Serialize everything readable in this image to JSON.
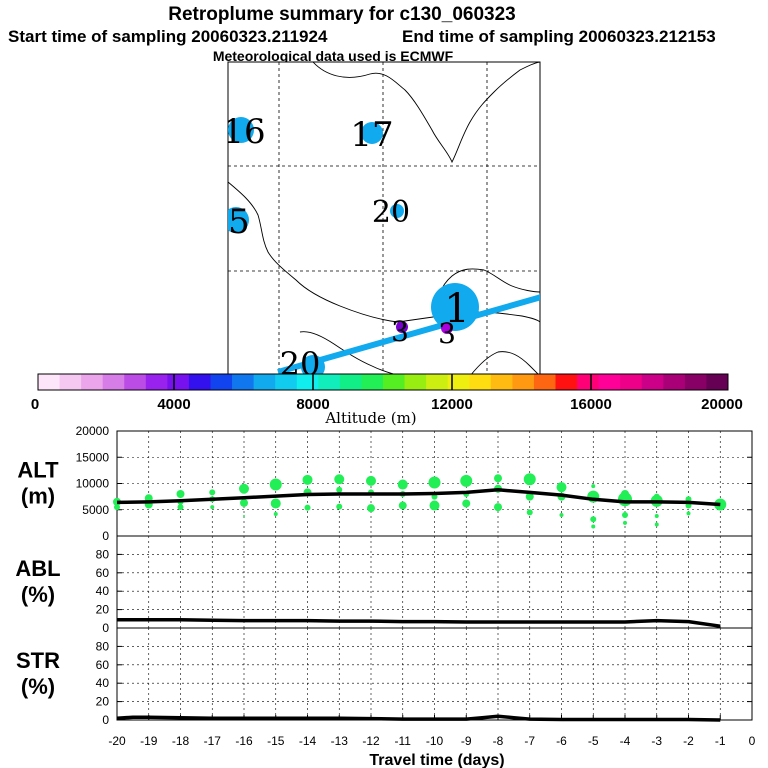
{
  "header": {
    "title": "Retroplume summary for c130_060323",
    "start": "Start time of sampling 20060323.211924",
    "end": "End time of sampling 20060323.212153",
    "met": "Meteorological data used is ECMWF"
  },
  "map": {
    "markers": [
      {
        "label": "16",
        "color": "#11aaee",
        "size": 13
      },
      {
        "label": "17",
        "color": "#11aaee",
        "size": 11
      },
      {
        "label": "5",
        "color": "#11aaee",
        "size": 13
      },
      {
        "label": "20",
        "color": "#11aaee",
        "size": 7
      },
      {
        "label": "1",
        "color": "#11aaee",
        "size": 24
      },
      {
        "label": "3",
        "color": "#7700cc",
        "size": 6
      },
      {
        "label": "3",
        "color": "#aa00dd",
        "size": 6
      },
      {
        "label": "20",
        "color": "#11aaee",
        "size": 12
      }
    ]
  },
  "colorbar": {
    "label": "Altitude (m)",
    "ticks": [
      "0",
      "4000",
      "8000",
      "12000",
      "16000",
      "20000"
    ],
    "colors": [
      "#fde6fa",
      "#f5c8f2",
      "#eba5eb",
      "#d77de8",
      "#bb4ce6",
      "#9922ee",
      "#7711ee",
      "#3311ee",
      "#1144ee",
      "#1177ee",
      "#11aaee",
      "#11ccee",
      "#11eeee",
      "#11eebb",
      "#11ee88",
      "#22ee55",
      "#55ee22",
      "#99ee11",
      "#ccee11",
      "#eeee11",
      "#ffdd11",
      "#ffbb11",
      "#ff9911",
      "#ff6611",
      "#ff1111",
      "#ff0077",
      "#ff0099",
      "#ee0088",
      "#cc0088",
      "#aa0077",
      "#880066",
      "#660055"
    ]
  },
  "chart_data": {
    "type": "scatter",
    "x_ticks": [
      "-20",
      "-19",
      "-18",
      "-17",
      "-16",
      "-15",
      "-14",
      "-13",
      "-12",
      "-11",
      "-10",
      "-9",
      "-8",
      "-7",
      "-6",
      "-5",
      "-4",
      "-3",
      "-2",
      "-1",
      "0"
    ],
    "xlabel": "Travel time (days)",
    "panels": [
      {
        "name": "ALT",
        "label_top": "ALT",
        "label_bottom": "(m)",
        "ylim": [
          0,
          20000
        ],
        "yticks": [
          "0",
          "5000",
          "10000",
          "15000",
          "20000"
        ],
        "line": {
          "x": [
            -20,
            -19,
            -18,
            -17,
            -16,
            -15,
            -14,
            -13,
            -12,
            -11,
            -10,
            -9,
            -8,
            -7,
            -6,
            -5,
            -4,
            -3,
            -2,
            -1
          ],
          "y": [
            6400,
            6500,
            6700,
            7000,
            7300,
            7600,
            7900,
            8000,
            8000,
            8000,
            8100,
            8300,
            8800,
            8300,
            7800,
            7000,
            6500,
            6500,
            6400,
            6000
          ]
        },
        "points": [
          {
            "x": -20,
            "y": 6500,
            "r": 4
          },
          {
            "x": -20,
            "y": 5500,
            "r": 3
          },
          {
            "x": -19,
            "y": 7200,
            "r": 4
          },
          {
            "x": -19,
            "y": 6000,
            "r": 4
          },
          {
            "x": -18,
            "y": 8000,
            "r": 4
          },
          {
            "x": -18,
            "y": 6500,
            "r": 3
          },
          {
            "x": -18,
            "y": 5500,
            "r": 3
          },
          {
            "x": -17,
            "y": 8300,
            "r": 3
          },
          {
            "x": -17,
            "y": 7000,
            "r": 3
          },
          {
            "x": -17,
            "y": 5500,
            "r": 2
          },
          {
            "x": -16,
            "y": 9000,
            "r": 5
          },
          {
            "x": -16,
            "y": 6300,
            "r": 4
          },
          {
            "x": -16,
            "y": 3800,
            "r": 1
          },
          {
            "x": -15,
            "y": 9800,
            "r": 6
          },
          {
            "x": -15,
            "y": 6200,
            "r": 5
          },
          {
            "x": -15,
            "y": 4200,
            "r": 2
          },
          {
            "x": -14,
            "y": 10700,
            "r": 5
          },
          {
            "x": -14,
            "y": 8300,
            "r": 4
          },
          {
            "x": -14,
            "y": 5400,
            "r": 3
          },
          {
            "x": -13,
            "y": 10800,
            "r": 5
          },
          {
            "x": -13,
            "y": 8800,
            "r": 3
          },
          {
            "x": -13,
            "y": 5600,
            "r": 3
          },
          {
            "x": -12,
            "y": 10500,
            "r": 5
          },
          {
            "x": -12,
            "y": 8300,
            "r": 3
          },
          {
            "x": -12,
            "y": 5300,
            "r": 4
          },
          {
            "x": -11,
            "y": 9800,
            "r": 5
          },
          {
            "x": -11,
            "y": 8000,
            "r": 3
          },
          {
            "x": -11,
            "y": 5800,
            "r": 4
          },
          {
            "x": -10,
            "y": 10200,
            "r": 6
          },
          {
            "x": -10,
            "y": 7500,
            "r": 3
          },
          {
            "x": -10,
            "y": 5800,
            "r": 5
          },
          {
            "x": -9,
            "y": 10500,
            "r": 6
          },
          {
            "x": -9,
            "y": 8000,
            "r": 3
          },
          {
            "x": -9,
            "y": 6200,
            "r": 4
          },
          {
            "x": -8,
            "y": 11000,
            "r": 4
          },
          {
            "x": -8,
            "y": 9000,
            "r": 4
          },
          {
            "x": -8,
            "y": 5500,
            "r": 4
          },
          {
            "x": -7,
            "y": 10800,
            "r": 6
          },
          {
            "x": -7,
            "y": 7500,
            "r": 4
          },
          {
            "x": -7,
            "y": 4500,
            "r": 3
          },
          {
            "x": -6,
            "y": 9300,
            "r": 5
          },
          {
            "x": -6,
            "y": 7500,
            "r": 4
          },
          {
            "x": -6,
            "y": 4000,
            "r": 2
          },
          {
            "x": -5,
            "y": 9500,
            "r": 2
          },
          {
            "x": -5,
            "y": 7500,
            "r": 6
          },
          {
            "x": -5,
            "y": 3200,
            "r": 3
          },
          {
            "x": -5,
            "y": 1800,
            "r": 2
          },
          {
            "x": -4,
            "y": 8000,
            "r": 4
          },
          {
            "x": -4,
            "y": 7000,
            "r": 7
          },
          {
            "x": -4,
            "y": 4000,
            "r": 3
          },
          {
            "x": -4,
            "y": 2500,
            "r": 2
          },
          {
            "x": -3,
            "y": 7500,
            "r": 3
          },
          {
            "x": -3,
            "y": 6700,
            "r": 6
          },
          {
            "x": -3,
            "y": 3800,
            "r": 2
          },
          {
            "x": -3,
            "y": 2200,
            "r": 2
          },
          {
            "x": -2,
            "y": 7000,
            "r": 3
          },
          {
            "x": -2,
            "y": 5800,
            "r": 3
          },
          {
            "x": -2,
            "y": 4300,
            "r": 2
          },
          {
            "x": -1,
            "y": 6000,
            "r": 6
          }
        ]
      },
      {
        "name": "ABL",
        "label_top": "ABL",
        "label_bottom": "(%)",
        "ylim": [
          0,
          100
        ],
        "yticks": [
          "0",
          "20",
          "40",
          "60",
          "80"
        ],
        "line": {
          "x": [
            -20,
            -19,
            -18,
            -17,
            -16,
            -15,
            -14,
            -13,
            -12,
            -11,
            -10,
            -9,
            -8,
            -7,
            -6,
            -5,
            -4,
            -3,
            -2,
            -1
          ],
          "y": [
            9,
            9,
            9,
            8.5,
            8,
            8,
            8,
            7.5,
            7.5,
            7,
            7,
            6.5,
            6.5,
            6.5,
            6.5,
            6.5,
            6.5,
            8,
            7,
            2
          ]
        }
      },
      {
        "name": "STR",
        "label_top": "STR",
        "label_bottom": "(%)",
        "ylim": [
          0,
          100
        ],
        "yticks": [
          "0",
          "20",
          "40",
          "60",
          "80"
        ],
        "line": {
          "x": [
            -20,
            -19.5,
            -19,
            -18,
            -17,
            -16,
            -15,
            -14,
            -13,
            -12,
            -11,
            -10,
            -9,
            -8.5,
            -8,
            -7.5,
            -7,
            -6,
            -5,
            -4,
            -3,
            -2,
            -1
          ],
          "y": [
            2,
            3,
            3,
            2.5,
            2,
            2,
            2,
            2,
            2,
            1.5,
            1,
            1,
            1,
            2.5,
            4,
            2.5,
            1,
            0.5,
            0.5,
            0.5,
            0.5,
            0.5,
            0
          ]
        }
      }
    ]
  }
}
